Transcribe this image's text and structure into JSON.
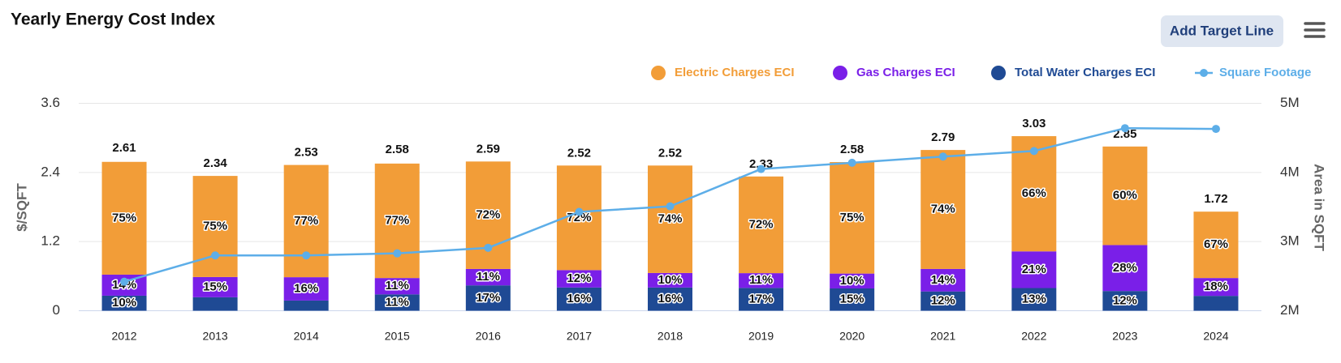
{
  "chart_data": {
    "type": "bar",
    "title": "Yearly Energy Cost Index",
    "button": "Add Target Line",
    "y_label": "$/SQFT",
    "y2_label": "Area in SQFT",
    "categories": [
      "2012",
      "2013",
      "2014",
      "2015",
      "2016",
      "2017",
      "2018",
      "2019",
      "2020",
      "2021",
      "2022",
      "2023",
      "2024"
    ],
    "totals": [
      2.61,
      2.34,
      2.53,
      2.58,
      2.59,
      2.52,
      2.52,
      2.33,
      2.58,
      2.79,
      3.03,
      2.85,
      1.72
    ],
    "series": [
      {
        "name": "Total Water Charges ECI",
        "color": "#1f4a94",
        "type": "bar",
        "values": [
          10,
          10,
          7,
          11,
          17,
          16,
          16,
          17,
          15,
          12,
          13,
          12,
          15
        ],
        "value_labels": [
          "10%",
          null,
          null,
          "11%",
          "17%",
          "16%",
          "16%",
          "17%",
          "15%",
          "12%",
          "13%",
          "12%",
          null
        ]
      },
      {
        "name": "Gas Charges ECI",
        "color": "#7a1fe8",
        "type": "bar",
        "values": [
          14,
          15,
          16,
          11,
          11,
          12,
          10,
          11,
          10,
          14,
          21,
          28,
          18
        ],
        "value_labels": [
          "14%",
          "15%",
          "16%",
          "11%",
          "11%",
          "12%",
          "10%",
          "11%",
          "10%",
          "14%",
          "21%",
          "28%",
          "18%"
        ]
      },
      {
        "name": "Electric Charges ECI",
        "color": "#f29d38",
        "type": "bar",
        "values": [
          75,
          75,
          77,
          77,
          72,
          72,
          74,
          72,
          75,
          74,
          66,
          60,
          67
        ],
        "value_labels": [
          "75%",
          "75%",
          "77%",
          "77%",
          "72%",
          "72%",
          "74%",
          "72%",
          "75%",
          "74%",
          "66%",
          "60%",
          "67%"
        ]
      },
      {
        "name": "Square Footage",
        "color": "#5daee8",
        "type": "line",
        "axis": "y2",
        "values": [
          2420000,
          2800000,
          2800000,
          2830000,
          2910000,
          3430000,
          3510000,
          4050000,
          4140000,
          4230000,
          4310000,
          4640000,
          4630000
        ]
      }
    ],
    "legend_order": [
      2,
      1,
      0,
      3
    ],
    "ylim": [
      0,
      3.6
    ],
    "yticks": [
      0,
      1.2,
      2.4,
      3.6
    ],
    "y2lim": [
      2000000,
      5000000
    ],
    "y2ticks": [
      {
        "value": 2000000,
        "label": "2M"
      },
      {
        "value": 3000000,
        "label": "3M"
      },
      {
        "value": 4000000,
        "label": "4M"
      },
      {
        "value": 5000000,
        "label": "5M"
      }
    ],
    "grid": true,
    "legend": "top-right"
  }
}
